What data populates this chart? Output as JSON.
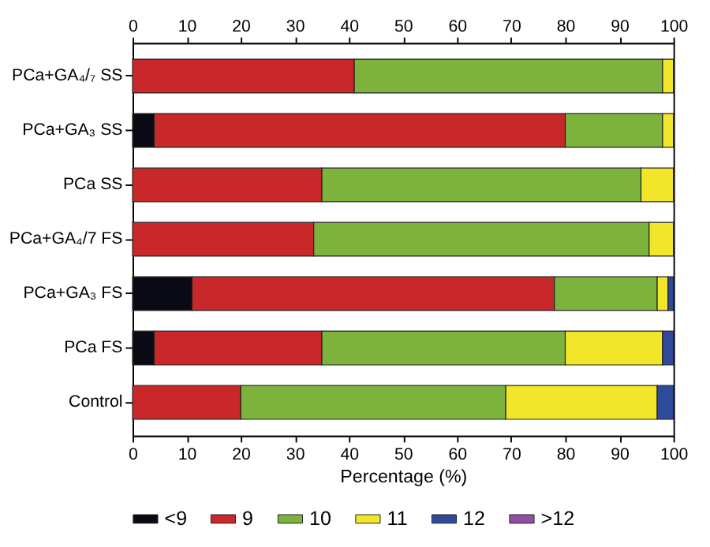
{
  "chart_data": {
    "type": "bar",
    "orientation": "horizontal",
    "stacked": true,
    "categories": [
      "PCa+GA₄/₇ SS",
      "PCa+GA₃ SS",
      "PCa  SS",
      "PCa+GA₄/7 FS",
      "PCa+GA₃ FS",
      "PCa  FS",
      "Control"
    ],
    "series": [
      {
        "name": "<9",
        "color": "#0a0a14",
        "values": [
          null,
          4,
          null,
          null,
          11,
          4,
          null
        ]
      },
      {
        "name": "9",
        "color": "#c8282a",
        "values": [
          41,
          76,
          35,
          33.5,
          67,
          31,
          20
        ]
      },
      {
        "name": "10",
        "color": "#7db33c",
        "values": [
          57,
          18,
          59,
          62,
          19,
          45,
          49
        ]
      },
      {
        "name": "11",
        "color": "#f2e62a",
        "values": [
          2,
          2,
          6,
          4.5,
          2,
          18,
          28
        ]
      },
      {
        "name": "12",
        "color": "#2e4a9a",
        "values": [
          null,
          null,
          null,
          null,
          1,
          2,
          3
        ]
      },
      {
        "name": ">12",
        "color": "#9050a0",
        "values": [
          null,
          null,
          null,
          null,
          null,
          null,
          null
        ]
      }
    ],
    "xlabel": "Percentage (%)",
    "xlim": [
      0,
      100
    ],
    "xticks": [
      0,
      10,
      20,
      30,
      40,
      50,
      60,
      70,
      80,
      90,
      100
    ],
    "x2lim": [
      0,
      100
    ],
    "x2ticks": [
      0,
      10,
      20,
      30,
      40,
      50,
      60,
      70,
      80,
      90,
      100
    ],
    "grid": false,
    "legend": "bottom"
  }
}
